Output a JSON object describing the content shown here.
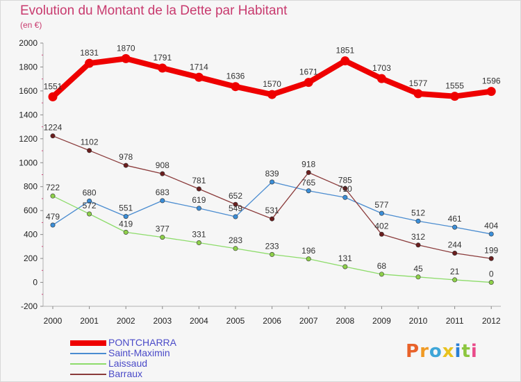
{
  "header": {
    "title": "Evolution du Montant de la Dette par Habitant",
    "subtitle": "(en €)"
  },
  "logo": {
    "text": "Proxiti",
    "letter_colors": [
      "#e8622a",
      "#f09a24",
      "#3ea6d8",
      "#e8c21e",
      "#2a7fd4",
      "#8cc63e",
      "#e94b8a"
    ]
  },
  "chart_data": {
    "type": "line",
    "x": [
      "2000",
      "2001",
      "2002",
      "2003",
      "2004",
      "2005",
      "2006",
      "2007",
      "2008",
      "2009",
      "2010",
      "2011",
      "2012"
    ],
    "ylim": [
      -200,
      2000
    ],
    "yticks": [
      -200,
      0,
      200,
      400,
      600,
      800,
      1000,
      1200,
      1400,
      1600,
      1800,
      2000
    ],
    "grid": false,
    "legend_position": "bottom-left",
    "series": [
      {
        "name": "PONTCHARRA",
        "color": "#ee0000",
        "emphasis": true,
        "values": [
          1551,
          1831,
          1870,
          1791,
          1714,
          1636,
          1570,
          1671,
          1851,
          1703,
          1577,
          1555,
          1596
        ]
      },
      {
        "name": "Saint-Maximin",
        "color": "#4a8cd0",
        "marker_color": "#3b8ed8",
        "values": [
          479,
          680,
          551,
          683,
          619,
          549,
          839,
          765,
          710,
          577,
          512,
          461,
          404
        ]
      },
      {
        "name": "Laissaud",
        "color": "#8ddc6a",
        "marker_color": "#8ed04a",
        "values": [
          722,
          572,
          419,
          377,
          331,
          283,
          233,
          196,
          131,
          68,
          45,
          21,
          0
        ]
      },
      {
        "name": "Barraux",
        "color": "#8a3a3a",
        "marker_color": "#6a1e1e",
        "values": [
          1224,
          1102,
          978,
          908,
          781,
          652,
          531,
          918,
          785,
          402,
          312,
          244,
          199
        ]
      }
    ]
  }
}
